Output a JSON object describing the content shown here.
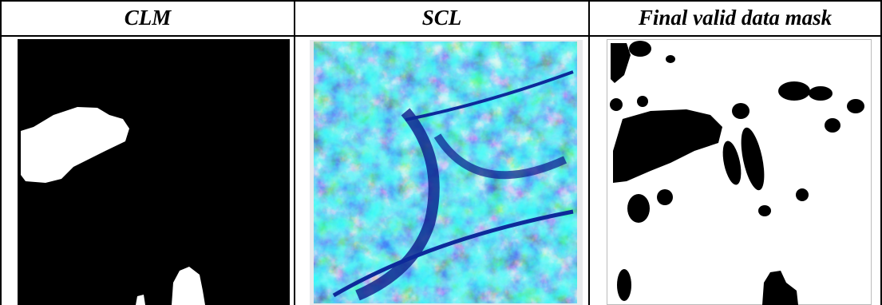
{
  "table": {
    "header": [
      "CLM",
      "SCL",
      "Final valid data mask"
    ]
  }
}
